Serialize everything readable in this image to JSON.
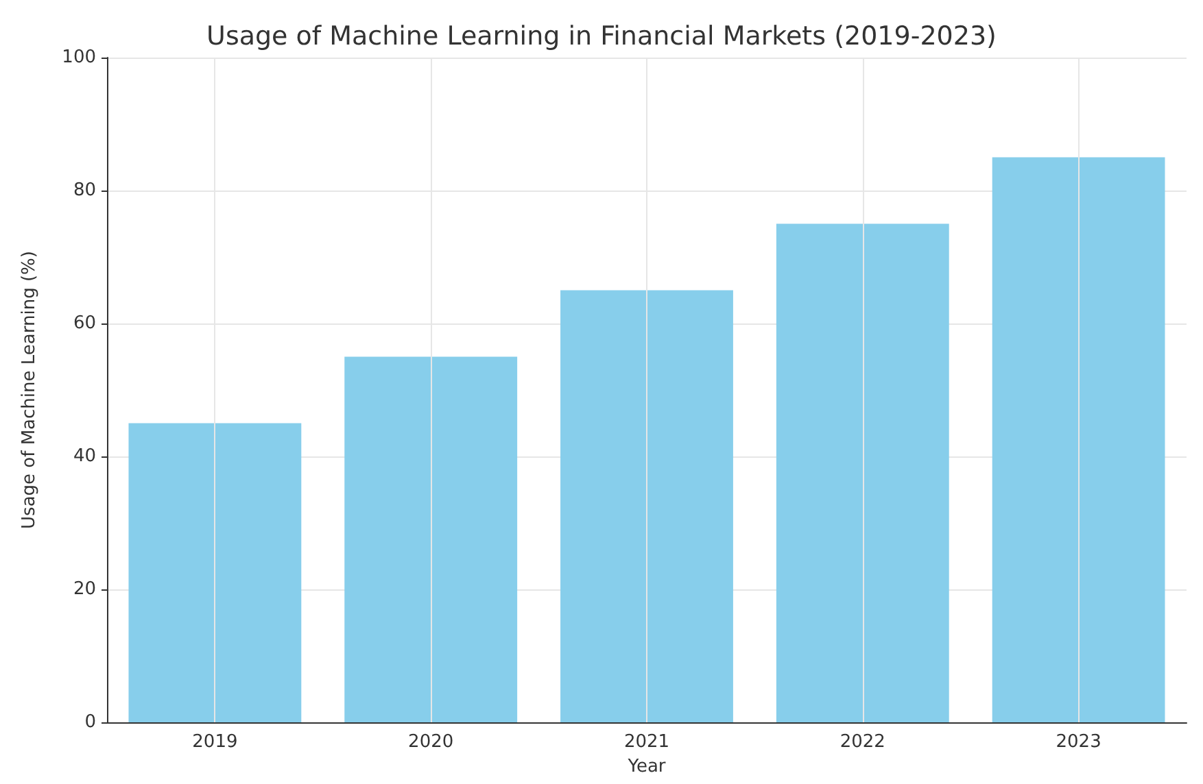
{
  "chart_data": {
    "type": "bar",
    "title": "Usage of Machine Learning in Financial Markets (2019-2023)",
    "xlabel": "Year",
    "ylabel": "Usage of Machine Learning (%)",
    "categories": [
      "2019",
      "2020",
      "2021",
      "2022",
      "2023"
    ],
    "values": [
      45,
      55,
      65,
      75,
      85
    ],
    "color": "#87ceeb",
    "ylim": [
      0,
      100
    ],
    "yticks": [
      0,
      20,
      40,
      60,
      80,
      100
    ],
    "grid": true
  }
}
